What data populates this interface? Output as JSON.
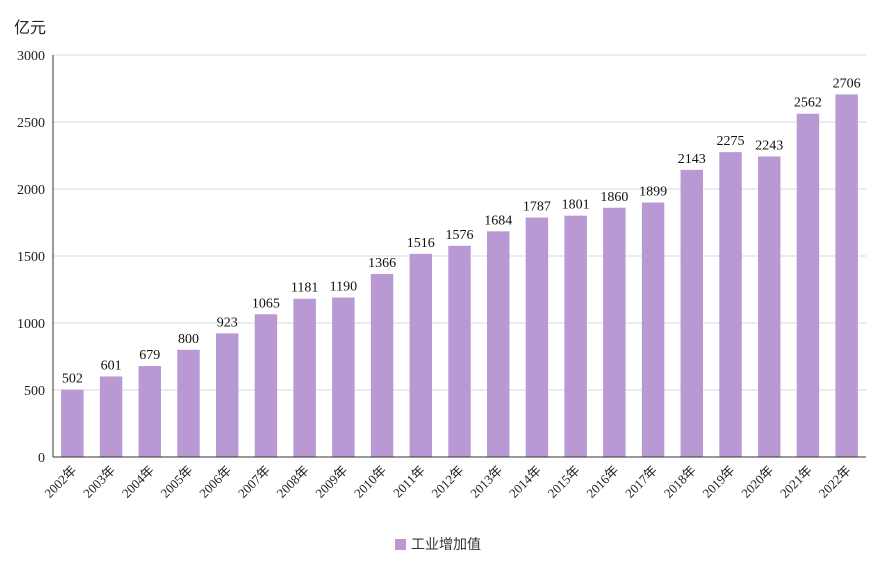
{
  "chart_data": {
    "type": "bar",
    "unit_label": "亿元",
    "categories": [
      "2002年",
      "2003年",
      "2004年",
      "2005年",
      "2006年",
      "2007年",
      "2008年",
      "2009年",
      "2010年",
      "2011年",
      "2012年",
      "2013年",
      "2014年",
      "2015年",
      "2016年",
      "2017年",
      "2018年",
      "2019年",
      "2020年",
      "2021年",
      "2022年"
    ],
    "series": [
      {
        "name": "工业增加值",
        "values": [
          502,
          601,
          679,
          800,
          923,
          1065,
          1181,
          1190,
          1366,
          1516,
          1576,
          1684,
          1787,
          1801,
          1860,
          1899,
          2143,
          2275,
          2243,
          2562,
          2706
        ]
      }
    ],
    "ylim": [
      0,
      3000
    ],
    "yticks": [
      0,
      500,
      1000,
      1500,
      2000,
      2500,
      3000
    ],
    "grid": true,
    "legend": "bottom-center",
    "bar_color": "#b899d4"
  }
}
